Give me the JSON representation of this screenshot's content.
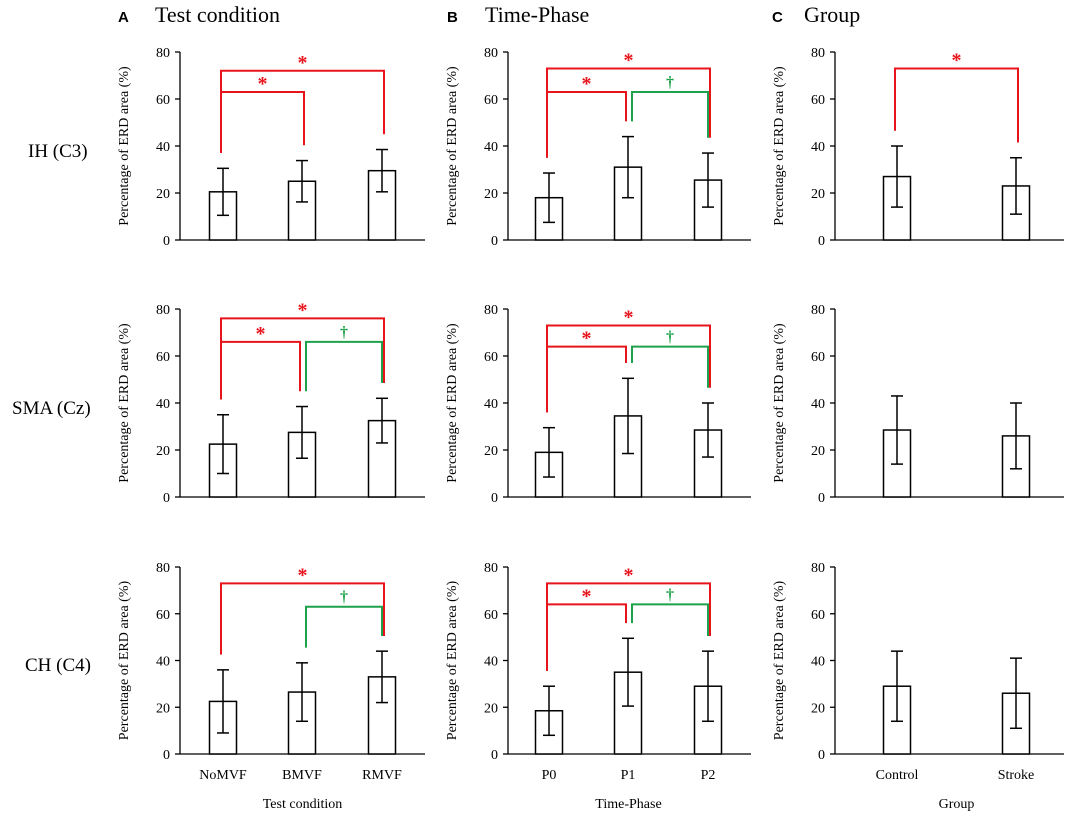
{
  "figure": {
    "colors": {
      "significant": "#e8141b",
      "trend": "#1ea14a",
      "axis": "#000000",
      "bar_fill": "#ffffff"
    },
    "panel_letters": [
      "A",
      "B",
      "C"
    ],
    "panel_titles": [
      "Test condition",
      "Time-Phase",
      "Group"
    ],
    "row_labels": [
      "IH (C3)",
      "SMA (Cz)",
      "CH (C4)"
    ],
    "ylabel": "Percentage of ERD area (%)",
    "y_ticks": [
      "0",
      "20",
      "40",
      "60",
      "80"
    ]
  },
  "chart_data": [
    {
      "id": "A1",
      "type": "bar",
      "row": 0,
      "col": 0,
      "categories": [
        "NoMVF",
        "BMVF",
        "RMVF"
      ],
      "values": [
        20.5,
        25,
        29.5
      ],
      "errors": [
        10,
        8.8,
        9
      ],
      "ylim": [
        0,
        80
      ],
      "xlabel": "",
      "ylabel": "Percentage of ERD area (%)",
      "brackets": [
        {
          "from": 0,
          "to": 2,
          "level": 72,
          "mark": "*",
          "kind": "significant"
        },
        {
          "from": 0,
          "to": 1,
          "level": 63,
          "mark": "*",
          "kind": "significant"
        }
      ]
    },
    {
      "id": "B1",
      "type": "bar",
      "row": 0,
      "col": 1,
      "categories": [
        "P0",
        "P1",
        "P2"
      ],
      "values": [
        18,
        31,
        25.5
      ],
      "errors": [
        10.5,
        13,
        11.5
      ],
      "ylim": [
        0,
        80
      ],
      "xlabel": "",
      "ylabel": "Percentage of ERD area (%)",
      "brackets": [
        {
          "from": 0,
          "to": 2,
          "level": 73,
          "mark": "*",
          "kind": "significant"
        },
        {
          "from": 0,
          "to": 1,
          "level": 63,
          "mark": "*",
          "kind": "significant"
        },
        {
          "from": 1,
          "to": 2,
          "level": 63,
          "mark": "†",
          "kind": "trend"
        }
      ]
    },
    {
      "id": "C1",
      "type": "bar",
      "row": 0,
      "col": 2,
      "categories": [
        "Control",
        "Stroke"
      ],
      "values": [
        27,
        23
      ],
      "errors": [
        13,
        12
      ],
      "ylim": [
        0,
        80
      ],
      "xlabel": "",
      "ylabel": "Percentage of ERD area (%)",
      "brackets": [
        {
          "from": 0,
          "to": 1,
          "level": 73,
          "mark": "*",
          "kind": "significant"
        }
      ]
    },
    {
      "id": "A2",
      "type": "bar",
      "row": 1,
      "col": 0,
      "categories": [
        "NoMVF",
        "BMVF",
        "RMVF"
      ],
      "values": [
        22.5,
        27.5,
        32.5
      ],
      "errors": [
        12.5,
        11,
        9.5
      ],
      "ylim": [
        0,
        80
      ],
      "xlabel": "",
      "ylabel": "Percentage of ERD area (%)",
      "brackets": [
        {
          "from": 0,
          "to": 2,
          "level": 76,
          "mark": "*",
          "kind": "significant"
        },
        {
          "from": 0,
          "to": 1,
          "level": 66,
          "mark": "*",
          "kind": "significant"
        },
        {
          "from": 1,
          "to": 2,
          "level": 66,
          "mark": "†",
          "kind": "trend"
        }
      ]
    },
    {
      "id": "B2",
      "type": "bar",
      "row": 1,
      "col": 1,
      "categories": [
        "P0",
        "P1",
        "P2"
      ],
      "values": [
        19,
        34.5,
        28.5
      ],
      "errors": [
        10.5,
        16,
        11.5
      ],
      "ylim": [
        0,
        80
      ],
      "xlabel": "",
      "ylabel": "Percentage of ERD area (%)",
      "brackets": [
        {
          "from": 0,
          "to": 2,
          "level": 73,
          "mark": "*",
          "kind": "significant"
        },
        {
          "from": 0,
          "to": 1,
          "level": 64,
          "mark": "*",
          "kind": "significant"
        },
        {
          "from": 1,
          "to": 2,
          "level": 64,
          "mark": "†",
          "kind": "trend"
        }
      ]
    },
    {
      "id": "C2",
      "type": "bar",
      "row": 1,
      "col": 2,
      "categories": [
        "Control",
        "Stroke"
      ],
      "values": [
        28.5,
        26
      ],
      "errors": [
        14.5,
        14
      ],
      "ylim": [
        0,
        80
      ],
      "xlabel": "",
      "ylabel": "Percentage of ERD area (%)",
      "brackets": []
    },
    {
      "id": "A3",
      "type": "bar",
      "row": 2,
      "col": 0,
      "categories": [
        "NoMVF",
        "BMVF",
        "RMVF"
      ],
      "values": [
        22.5,
        26.5,
        33
      ],
      "errors": [
        13.5,
        12.5,
        11
      ],
      "ylim": [
        0,
        80
      ],
      "xlabel": "Test condition",
      "ylabel": "Percentage of ERD area (%)",
      "brackets": [
        {
          "from": 0,
          "to": 2,
          "level": 73,
          "mark": "*",
          "kind": "significant"
        },
        {
          "from": 1,
          "to": 2,
          "level": 63,
          "mark": "†",
          "kind": "trend"
        }
      ]
    },
    {
      "id": "B3",
      "type": "bar",
      "row": 2,
      "col": 1,
      "categories": [
        "P0",
        "P1",
        "P2"
      ],
      "values": [
        18.5,
        35,
        29
      ],
      "errors": [
        10.5,
        14.5,
        15
      ],
      "ylim": [
        0,
        80
      ],
      "xlabel": "Time-Phase",
      "ylabel": "Percentage of ERD area (%)",
      "brackets": [
        {
          "from": 0,
          "to": 2,
          "level": 73,
          "mark": "*",
          "kind": "significant"
        },
        {
          "from": 0,
          "to": 1,
          "level": 64,
          "mark": "*",
          "kind": "significant"
        },
        {
          "from": 1,
          "to": 2,
          "level": 64,
          "mark": "†",
          "kind": "trend"
        }
      ]
    },
    {
      "id": "C3",
      "type": "bar",
      "row": 2,
      "col": 2,
      "categories": [
        "Control",
        "Stroke"
      ],
      "values": [
        29,
        26
      ],
      "errors": [
        15,
        15
      ],
      "ylim": [
        0,
        80
      ],
      "xlabel": "Group",
      "ylabel": "Percentage of ERD area (%)",
      "brackets": []
    }
  ]
}
